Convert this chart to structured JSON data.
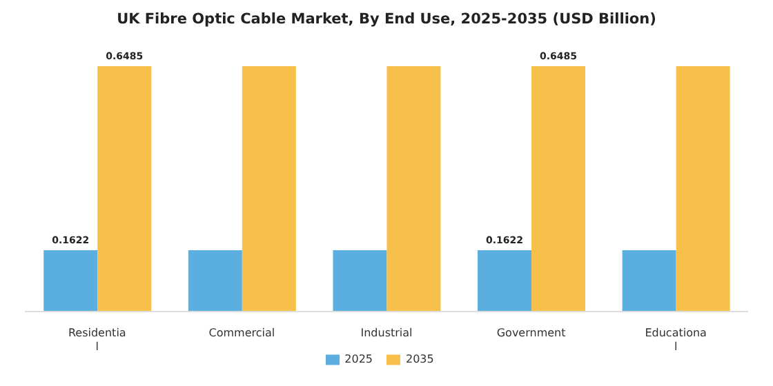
{
  "chart_data": {
    "type": "bar",
    "title": "UK Fibre Optic Cable Market, By End Use, 2025-2035 (USD Billion)",
    "categories": [
      "Residential",
      "Commercial",
      "Industrial",
      "Government",
      "Educational"
    ],
    "series": [
      {
        "name": "2025",
        "color": "#5aafe0",
        "values": [
          0.1622,
          0.1622,
          0.1622,
          0.1622,
          0.1622
        ],
        "value_labels": [
          "0.1622",
          null,
          null,
          "0.1622",
          null
        ]
      },
      {
        "name": "2035",
        "color": "#f7c04a",
        "values": [
          0.6485,
          0.6485,
          0.6485,
          0.6485,
          0.6485
        ],
        "value_labels": [
          "0.6485",
          null,
          null,
          "0.6485",
          null
        ]
      }
    ],
    "legend": "bottom",
    "tick_labels": "x"
  }
}
